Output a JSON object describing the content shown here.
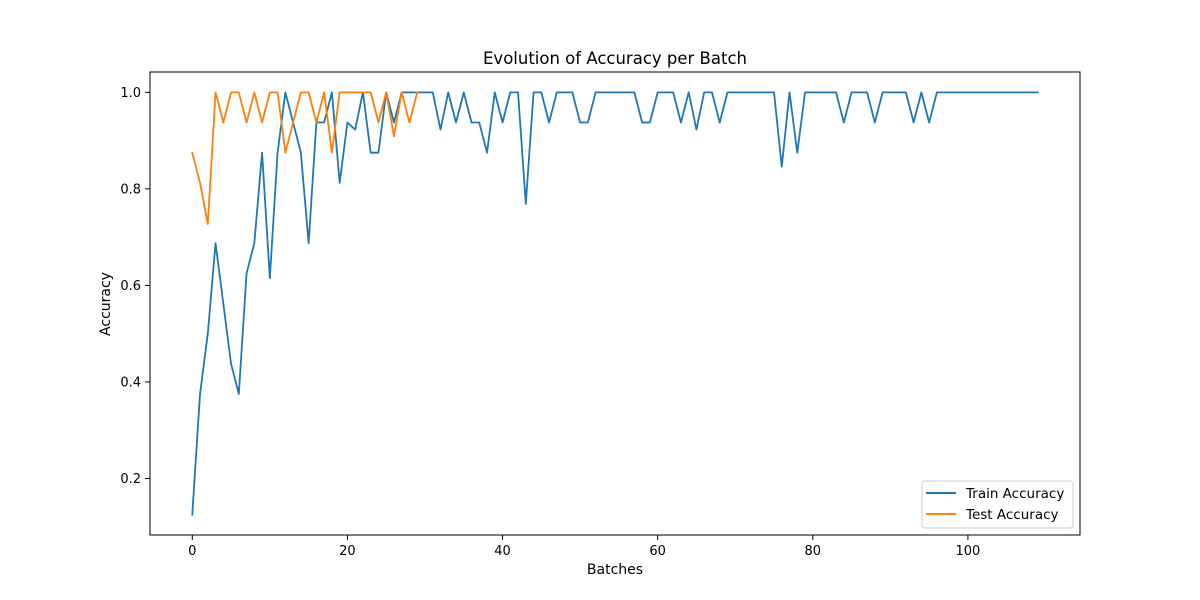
{
  "chart_data": {
    "type": "line",
    "title": "Evolution of Accuracy per Batch",
    "xlabel": "Batches",
    "ylabel": "Accuracy",
    "xlim": [
      -5.45,
      114.45
    ],
    "ylim": [
      0.0828,
      1.0422
    ],
    "xticks": [
      0,
      20,
      40,
      60,
      80,
      100
    ],
    "yticks": [
      0.2,
      0.4,
      0.6,
      0.8,
      1.0
    ],
    "xtick_labels": [
      "0",
      "20",
      "40",
      "60",
      "80",
      "100"
    ],
    "ytick_labels": [
      "0.2",
      "0.4",
      "0.6",
      "0.8",
      "1.0"
    ],
    "grid": false,
    "legend_position": "lower-right",
    "series": [
      {
        "name": "Train Accuracy",
        "color": "#1f77b4",
        "x": [
          0,
          1,
          2,
          3,
          4,
          5,
          6,
          7,
          8,
          9,
          10,
          11,
          12,
          13,
          14,
          15,
          16,
          17,
          18,
          19,
          20,
          21,
          22,
          23,
          24,
          25,
          26,
          27,
          28,
          29,
          30,
          31,
          32,
          33,
          34,
          35,
          36,
          37,
          38,
          39,
          40,
          41,
          42,
          43,
          44,
          45,
          46,
          47,
          48,
          49,
          50,
          51,
          52,
          53,
          54,
          55,
          56,
          57,
          58,
          59,
          60,
          61,
          62,
          63,
          64,
          65,
          66,
          67,
          68,
          69,
          70,
          71,
          72,
          73,
          74,
          75,
          76,
          77,
          78,
          79,
          80,
          81,
          82,
          83,
          84,
          85,
          86,
          87,
          88,
          89,
          90,
          91,
          92,
          93,
          94,
          95,
          96,
          97,
          98,
          99,
          100,
          101,
          102,
          103,
          104,
          105,
          106,
          107,
          108,
          109
        ],
        "values": [
          0.125,
          0.375,
          0.5,
          0.6875,
          0.5625,
          0.4375,
          0.375,
          0.625,
          0.6875,
          0.875,
          0.615,
          0.875,
          1.0,
          0.9375,
          0.875,
          0.6875,
          0.9375,
          0.9375,
          1.0,
          0.8125,
          0.9375,
          0.923,
          1.0,
          0.875,
          0.875,
          1.0,
          0.9375,
          1.0,
          1.0,
          1.0,
          1.0,
          1.0,
          0.923,
          1.0,
          0.9375,
          1.0,
          0.9375,
          0.9375,
          0.875,
          1.0,
          0.9375,
          1.0,
          1.0,
          0.769,
          1.0,
          1.0,
          0.9375,
          1.0,
          1.0,
          1.0,
          0.9375,
          0.9375,
          1.0,
          1.0,
          1.0,
          1.0,
          1.0,
          1.0,
          0.9375,
          0.9375,
          1.0,
          1.0,
          1.0,
          0.9375,
          1.0,
          0.923,
          1.0,
          1.0,
          0.9375,
          1.0,
          1.0,
          1.0,
          1.0,
          1.0,
          1.0,
          1.0,
          0.846,
          1.0,
          0.875,
          1.0,
          1.0,
          1.0,
          1.0,
          1.0,
          0.9375,
          1.0,
          1.0,
          1.0,
          0.9375,
          1.0,
          1.0,
          1.0,
          1.0,
          0.9375,
          1.0,
          0.9375,
          1.0,
          1.0,
          1.0,
          1.0,
          1.0,
          1.0,
          1.0,
          1.0,
          1.0,
          1.0,
          1.0,
          1.0,
          1.0,
          1.0
        ]
      },
      {
        "name": "Test Accuracy",
        "color": "#ff7f0e",
        "x": [
          0,
          1,
          2,
          3,
          4,
          5,
          6,
          7,
          8,
          9,
          10,
          11,
          12,
          13,
          14,
          15,
          16,
          17,
          18,
          19,
          20,
          21,
          22,
          23,
          24,
          25,
          26,
          27,
          28,
          29
        ],
        "values": [
          0.875,
          0.8125,
          0.7273,
          1.0,
          0.9375,
          1.0,
          1.0,
          0.9375,
          1.0,
          0.9375,
          1.0,
          1.0,
          0.875,
          0.9375,
          1.0,
          1.0,
          0.9375,
          1.0,
          0.875,
          1.0,
          1.0,
          1.0,
          1.0,
          1.0,
          0.9375,
          1.0,
          0.9091,
          1.0,
          0.9375,
          1.0
        ]
      }
    ]
  }
}
